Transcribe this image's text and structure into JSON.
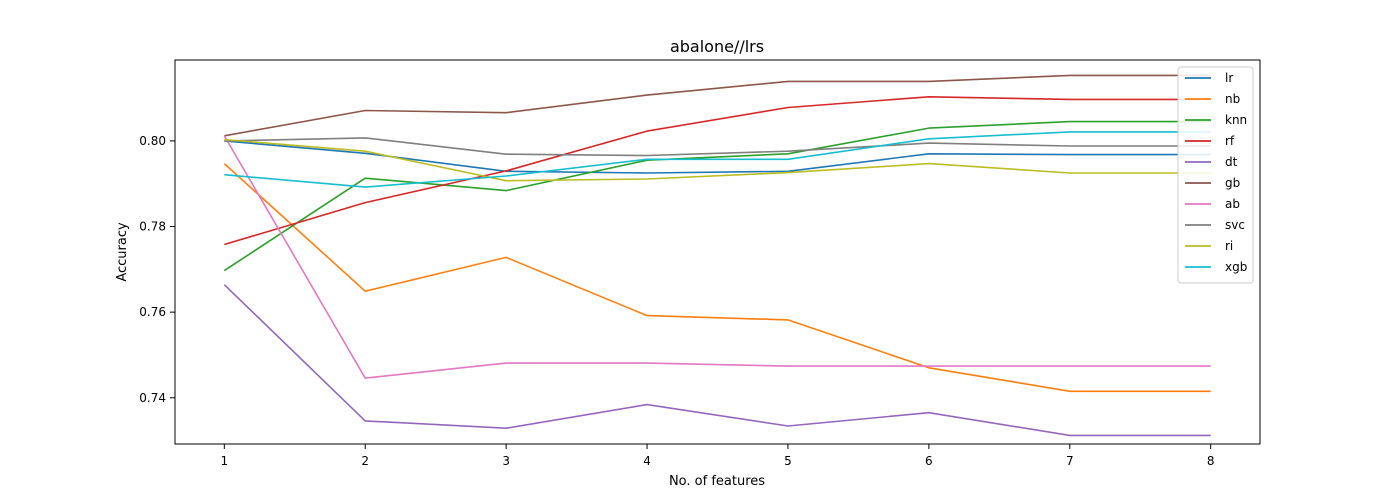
{
  "chart_data": {
    "type": "line",
    "title": "abalone//lrs",
    "xlabel": "No. of features",
    "ylabel": "Accuracy",
    "x": [
      1,
      2,
      3,
      4,
      5,
      6,
      7,
      8
    ],
    "xlim": [
      0.65,
      8.35
    ],
    "ylim": [
      0.7292,
      0.8189
    ],
    "xticks": [
      1,
      2,
      3,
      4,
      5,
      6,
      7,
      8
    ],
    "yticks": [
      0.74,
      0.76,
      0.78,
      0.8
    ],
    "ytick_labels": [
      "0.74",
      "0.76",
      "0.78",
      "0.80"
    ],
    "legend_position": "top-right",
    "grid": false,
    "series": [
      {
        "name": "lr",
        "color": "#1f77b4",
        "values": [
          0.8,
          0.7971,
          0.7929,
          0.7925,
          0.7929,
          0.797,
          0.7968,
          0.7968
        ]
      },
      {
        "name": "nb",
        "color": "#ff7f0e",
        "values": [
          0.7947,
          0.7649,
          0.7728,
          0.7592,
          0.7582,
          0.747,
          0.7415,
          0.7415
        ]
      },
      {
        "name": "knn",
        "color": "#2ca02c",
        "values": [
          0.7697,
          0.7913,
          0.7884,
          0.7955,
          0.797,
          0.803,
          0.8045,
          0.8045
        ]
      },
      {
        "name": "rf",
        "color": "#d62728",
        "values": [
          0.7758,
          0.7856,
          0.793,
          0.8023,
          0.8078,
          0.8103,
          0.8097,
          0.8097
        ]
      },
      {
        "name": "dt",
        "color": "#9467bd",
        "values": [
          0.7664,
          0.7346,
          0.7329,
          0.7384,
          0.7334,
          0.7365,
          0.7312,
          0.7312
        ]
      },
      {
        "name": "gb",
        "color": "#8c564b",
        "values": [
          0.8012,
          0.8071,
          0.8066,
          0.8107,
          0.8139,
          0.8139,
          0.8153,
          0.8153
        ]
      },
      {
        "name": "ab",
        "color": "#e377c2",
        "values": [
          0.8012,
          0.7446,
          0.7481,
          0.7481,
          0.7474,
          0.7474,
          0.7474,
          0.7474
        ]
      },
      {
        "name": "svc",
        "color": "#7f7f7f",
        "values": [
          0.8,
          0.8007,
          0.7969,
          0.7966,
          0.7976,
          0.7995,
          0.7988,
          0.7988
        ]
      },
      {
        "name": "ri",
        "color": "#bcbd22",
        "values": [
          0.8003,
          0.7976,
          0.7907,
          0.7911,
          0.7926,
          0.7947,
          0.7925,
          0.7925
        ]
      },
      {
        "name": "xgb",
        "color": "#17becf",
        "values": [
          0.7921,
          0.7892,
          0.7918,
          0.7957,
          0.7957,
          0.8005,
          0.8021,
          0.8021
        ]
      }
    ]
  }
}
